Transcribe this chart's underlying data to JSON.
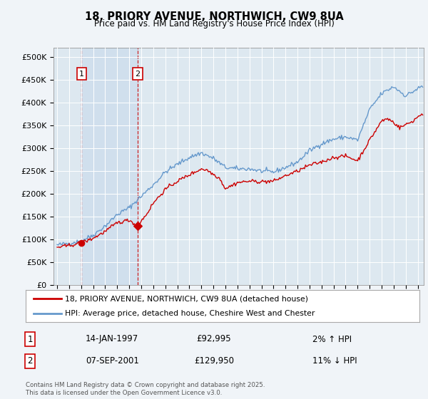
{
  "title_line1": "18, PRIORY AVENUE, NORTHWICH, CW9 8UA",
  "title_line2": "Price paid vs. HM Land Registry's House Price Index (HPI)",
  "legend_label1": "18, PRIORY AVENUE, NORTHWICH, CW9 8UA (detached house)",
  "legend_label2": "HPI: Average price, detached house, Cheshire West and Chester",
  "annotation1_date": "14-JAN-1997",
  "annotation1_price": "£92,995",
  "annotation1_hpi": "2% ↑ HPI",
  "annotation1_year": 1997.04,
  "annotation1_value": 92995,
  "annotation2_date": "07-SEP-2001",
  "annotation2_price": "£129,950",
  "annotation2_hpi": "11% ↓ HPI",
  "annotation2_year": 2001.69,
  "annotation2_value": 129950,
  "line_color_price": "#cc0000",
  "line_color_hpi": "#6699cc",
  "background_color": "#f0f4f8",
  "footer_text": "Contains HM Land Registry data © Crown copyright and database right 2025.\nThis data is licensed under the Open Government Licence v3.0.",
  "ylim": [
    0,
    520000
  ],
  "yticks": [
    0,
    50000,
    100000,
    150000,
    200000,
    250000,
    300000,
    350000,
    400000,
    450000,
    500000
  ],
  "ytick_labels": [
    "£0",
    "£50K",
    "£100K",
    "£150K",
    "£200K",
    "£250K",
    "£300K",
    "£350K",
    "£400K",
    "£450K",
    "£500K"
  ],
  "xlim_start": 1994.7,
  "xlim_end": 2025.5
}
